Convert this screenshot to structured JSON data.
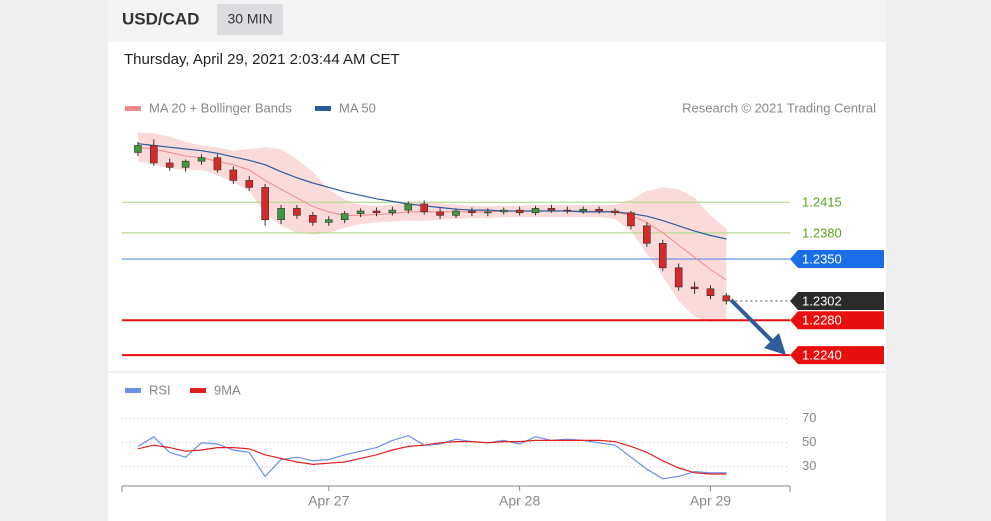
{
  "chart_data": {
    "type": "candlestick",
    "title": "USD/CAD",
    "timeframe": "30 MIN",
    "subtitle": "Thursday, April 29, 2021 2:03:44 AM CET",
    "credit": "Research © 2021 Trading Central",
    "x": [
      0,
      1,
      2,
      3,
      4,
      5,
      6,
      7,
      8,
      9,
      10,
      11,
      12,
      13,
      14,
      15,
      16,
      17,
      18,
      19,
      20,
      21,
      22,
      23,
      24,
      25,
      26,
      27,
      28,
      29,
      30,
      31,
      32,
      33,
      34,
      35,
      36,
      37
    ],
    "xlim": [
      -1,
      41
    ],
    "xticks": [
      {
        "value": 12,
        "label": "Apr 27"
      },
      {
        "value": 24,
        "label": "Apr 28"
      },
      {
        "value": 36,
        "label": "Apr 29"
      }
    ],
    "ylim": [
      1.2223,
      1.25
    ],
    "open": [
      1.2472,
      1.248,
      1.246,
      1.2455,
      1.2462,
      1.2466,
      1.2452,
      1.244,
      1.2432,
      1.2395,
      1.2408,
      1.24,
      1.2392,
      1.2395,
      1.2402,
      1.2405,
      1.2403,
      1.2406,
      1.2413,
      1.2404,
      1.24,
      1.2405,
      1.2403,
      1.2404,
      1.2406,
      1.2403,
      1.2408,
      1.2406,
      1.2405,
      1.2407,
      1.2405,
      1.2403,
      1.2388,
      1.2368,
      1.234,
      1.2318,
      1.2316,
      1.2308
    ],
    "high": [
      1.2484,
      1.2487,
      1.2465,
      1.2464,
      1.247,
      1.247,
      1.2456,
      1.2445,
      1.2436,
      1.2412,
      1.2412,
      1.2404,
      1.2399,
      1.2405,
      1.2408,
      1.2409,
      1.241,
      1.2416,
      1.2417,
      1.2408,
      1.2408,
      1.2409,
      1.2408,
      1.2409,
      1.241,
      1.2411,
      1.2412,
      1.241,
      1.241,
      1.241,
      1.2408,
      1.2405,
      1.2392,
      1.2372,
      1.2345,
      1.2324,
      1.232,
      1.2311
    ],
    "low": [
      1.2468,
      1.2457,
      1.2451,
      1.245,
      1.2458,
      1.2449,
      1.2436,
      1.2428,
      1.2388,
      1.239,
      1.2396,
      1.2388,
      1.2388,
      1.2391,
      1.2398,
      1.2399,
      1.24,
      1.2402,
      1.2401,
      1.2396,
      1.2397,
      1.2399,
      1.2399,
      1.2401,
      1.24,
      1.24,
      1.2403,
      1.2402,
      1.2402,
      1.2402,
      1.24,
      1.2384,
      1.2364,
      1.2336,
      1.2314,
      1.231,
      1.2304,
      1.2298
    ],
    "close": [
      1.248,
      1.246,
      1.2455,
      1.2462,
      1.2466,
      1.2452,
      1.244,
      1.2432,
      1.2395,
      1.2408,
      1.24,
      1.2392,
      1.2395,
      1.2402,
      1.2405,
      1.2403,
      1.2406,
      1.2413,
      1.2404,
      1.24,
      1.2405,
      1.2403,
      1.2404,
      1.2406,
      1.2403,
      1.2408,
      1.2406,
      1.2405,
      1.2407,
      1.2405,
      1.2403,
      1.2388,
      1.2368,
      1.234,
      1.2318,
      1.2316,
      1.2308,
      1.2302
    ],
    "up_color": "#3f9a3f",
    "down_color": "#d42a2a",
    "band_color": "#fbdada",
    "series": [
      {
        "name": "MA 20 + Bollinger Bands",
        "color": "#f08a8a",
        "values": [
          1.2478,
          1.2476,
          1.2472,
          1.2468,
          1.2466,
          1.2462,
          1.2458,
          1.2452,
          1.244,
          1.243,
          1.242,
          1.241,
          1.2404,
          1.24,
          1.24,
          1.2401,
          1.2402,
          1.2404,
          1.2404,
          1.2404,
          1.2404,
          1.2404,
          1.2404,
          1.2405,
          1.2405,
          1.2405,
          1.2405,
          1.2405,
          1.2405,
          1.2405,
          1.2404,
          1.24,
          1.2392,
          1.238,
          1.2366,
          1.2352,
          1.2338,
          1.2326
        ],
        "upper": [
          1.2495,
          1.2494,
          1.249,
          1.2484,
          1.248,
          1.2478,
          1.2474,
          1.2476,
          1.2478,
          1.2476,
          1.2464,
          1.245,
          1.243,
          1.2418,
          1.2412,
          1.2411,
          1.2412,
          1.2415,
          1.2415,
          1.2414,
          1.2412,
          1.2411,
          1.2411,
          1.2411,
          1.2411,
          1.2412,
          1.2412,
          1.2412,
          1.2412,
          1.2412,
          1.2412,
          1.2418,
          1.2428,
          1.2432,
          1.243,
          1.242,
          1.24,
          1.2385
        ],
        "lower": [
          1.2462,
          1.2458,
          1.2454,
          1.2452,
          1.2452,
          1.2446,
          1.2438,
          1.2428,
          1.2402,
          1.2388,
          1.238,
          1.2378,
          1.238,
          1.2386,
          1.239,
          1.2392,
          1.2393,
          1.2394,
          1.2394,
          1.2395,
          1.2396,
          1.2397,
          1.2397,
          1.2398,
          1.2398,
          1.2398,
          1.2398,
          1.2398,
          1.2398,
          1.2398,
          1.2396,
          1.2382,
          1.2356,
          1.233,
          1.2302,
          1.2284,
          1.2278,
          1.228
        ]
      },
      {
        "name": "MA 50",
        "color": "#2f5d9c",
        "values": [
          1.2482,
          1.248,
          1.2478,
          1.2476,
          1.2474,
          1.2471,
          1.2467,
          1.2463,
          1.2458,
          1.245,
          1.2443,
          1.2437,
          1.2432,
          1.2427,
          1.2423,
          1.2419,
          1.2416,
          1.2413,
          1.2411,
          1.2409,
          1.2407,
          1.2406,
          1.2406,
          1.2405,
          1.2405,
          1.2405,
          1.2405,
          1.2405,
          1.2404,
          1.2404,
          1.2404,
          1.2402,
          1.2399,
          1.2394,
          1.2388,
          1.2382,
          1.2377,
          1.2373
        ]
      }
    ],
    "levels": [
      {
        "value": 1.2415,
        "color": "#5aa51e",
        "line_color": "#b7dc95",
        "style": "text",
        "line": "solid"
      },
      {
        "value": 1.238,
        "label": "1.2380",
        "color": "#5aa51e",
        "line_color": "#b7dc95",
        "style": "text",
        "line": "solid"
      },
      {
        "value": 1.235,
        "label": "1.2350",
        "color": "#1a6fe8",
        "line_color": "#5b8fe6",
        "style": "tag",
        "line": "solid"
      },
      {
        "value": 1.2302,
        "color": "#2b2b2b",
        "line_color": "#888888",
        "style": "tag",
        "line": "dotted"
      },
      {
        "value": 1.228,
        "label": "1.2280",
        "color": "#e8100f",
        "line_color": "#e8100f",
        "style": "tag",
        "line": "solid"
      },
      {
        "value": 1.224,
        "label": "1.2240",
        "color": "#e8100f",
        "line_color": "#e8100f",
        "style": "tag",
        "line": "solid"
      }
    ],
    "rsi": {
      "ylim": [
        14,
        81
      ],
      "yticks": [
        70,
        50,
        30
      ],
      "series": [
        {
          "name": "RSI",
          "color": "#6b8ee8",
          "values": [
            47,
            55,
            42,
            38,
            50,
            49,
            44,
            42,
            22,
            36,
            38,
            35,
            36,
            40,
            43,
            46,
            52,
            56,
            48,
            49,
            53,
            51,
            50,
            52,
            49,
            55,
            52,
            53,
            52,
            50,
            48,
            38,
            28,
            20,
            22,
            26,
            25,
            25
          ]
        },
        {
          "name": "9MA",
          "color": "#e02020",
          "values": [
            45,
            48,
            46,
            43,
            44,
            46,
            46,
            45,
            40,
            37,
            34,
            32,
            33,
            34,
            37,
            40,
            44,
            47,
            48,
            50,
            51,
            51,
            50,
            51,
            51,
            52,
            52,
            52,
            52,
            52,
            51,
            47,
            42,
            35,
            29,
            25,
            24,
            24
          ]
        }
      ]
    }
  }
}
